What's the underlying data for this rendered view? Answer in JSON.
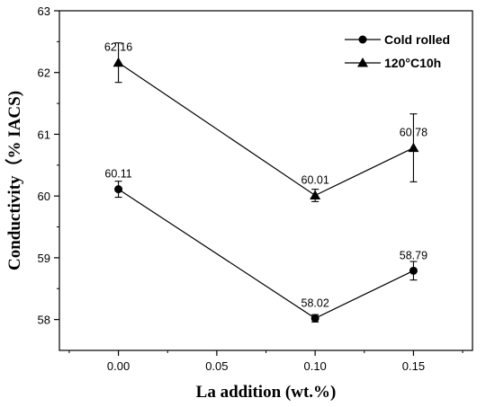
{
  "chart_data": {
    "type": "line",
    "xlabel": "La addition (wt.%)",
    "ylabel": "Conductivity（% IACS)",
    "xlim": [
      -0.03,
      0.18
    ],
    "ylim": [
      57.5,
      63
    ],
    "xticks": [
      "0.00",
      "0.05",
      "0.10",
      "0.15"
    ],
    "xtick_values": [
      0,
      0.05,
      0.1,
      0.15
    ],
    "yticks": [
      "58",
      "59",
      "60",
      "61",
      "62",
      "63"
    ],
    "ytick_values": [
      58,
      59,
      60,
      61,
      62,
      63
    ],
    "grid": false,
    "legend_position": "top-right",
    "x": [
      0,
      0.1,
      0.15
    ],
    "series": [
      {
        "name": "Cold rolled",
        "marker": "circle",
        "values": [
          60.11,
          58.02,
          58.79
        ],
        "error": [
          0.13,
          0.06,
          0.15
        ],
        "labels": [
          "60.11",
          "58.02",
          "58.79"
        ]
      },
      {
        "name": "120°C10h",
        "marker": "triangle",
        "values": [
          62.16,
          60.01,
          60.78
        ],
        "error": [
          0.32,
          0.1,
          0.55
        ],
        "labels": [
          "62.16",
          "60.01",
          "60.78"
        ]
      }
    ]
  }
}
